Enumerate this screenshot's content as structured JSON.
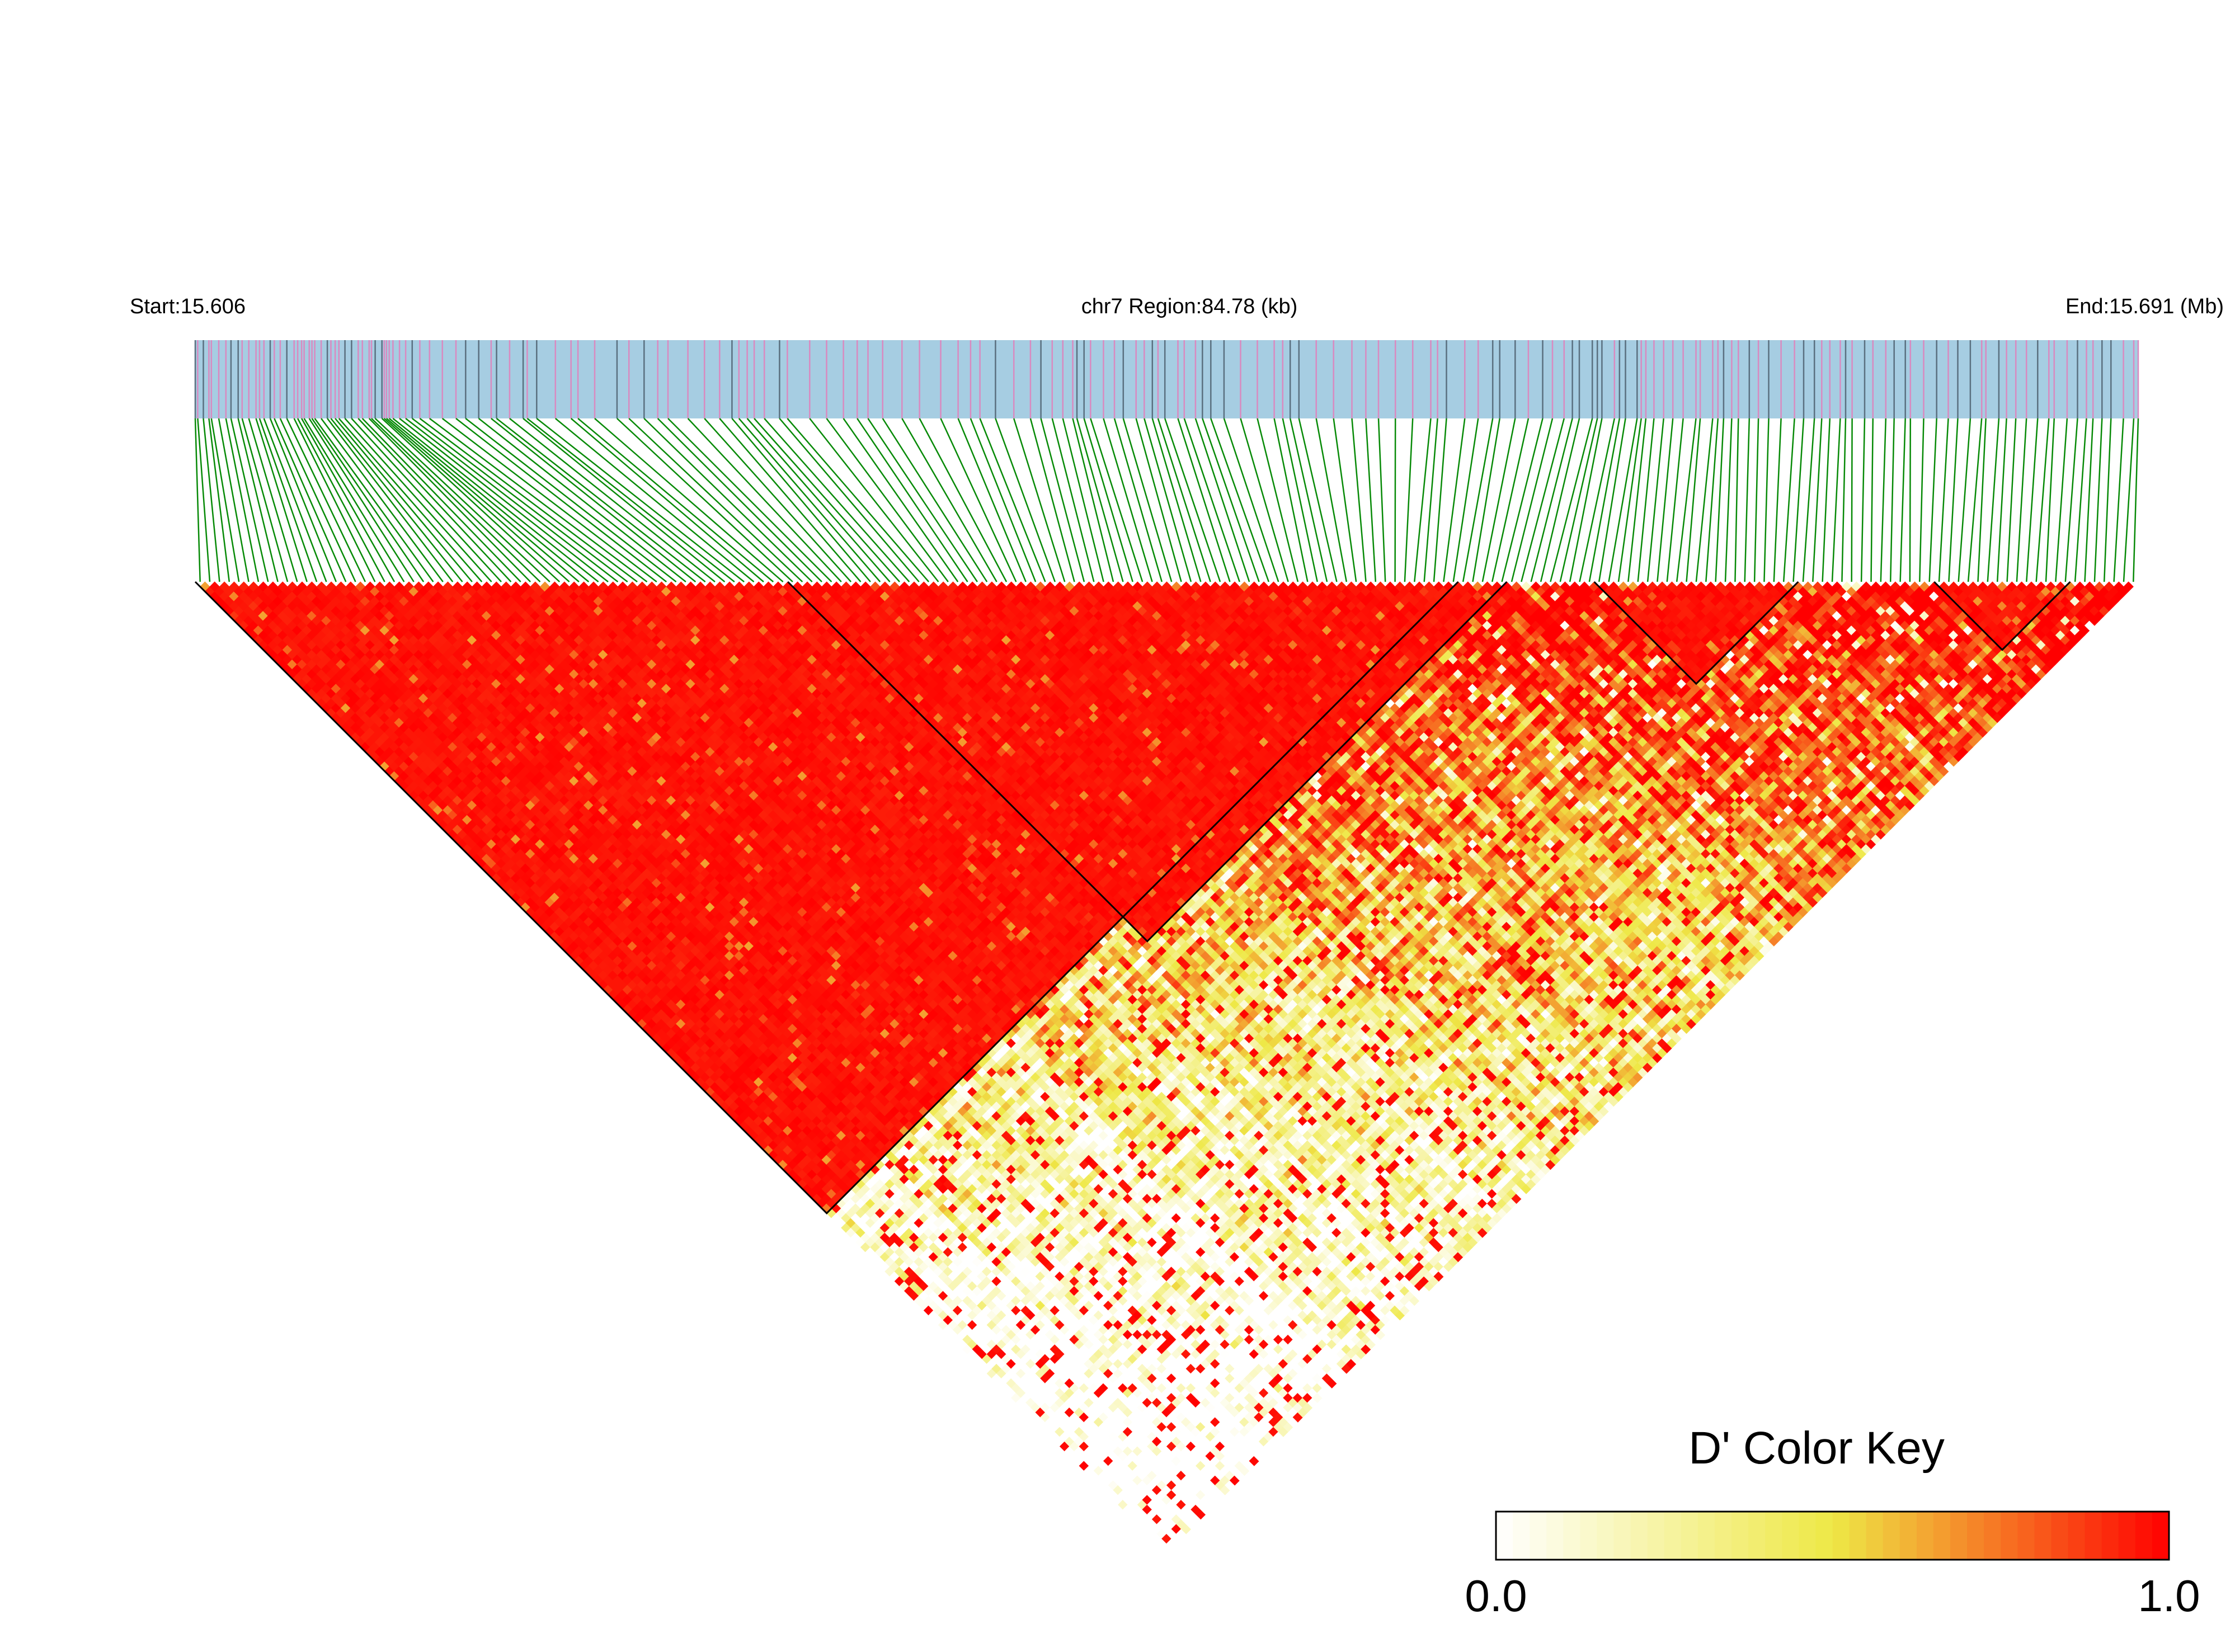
{
  "header": {
    "start_label": "Start:15.606",
    "region_label": "chr7 Region:84.78 (kb)",
    "end_label": "End:15.691 (Mb)"
  },
  "colors": {
    "track_background": "#a6cde2",
    "snp_pink": "#d98ac0",
    "snp_gray": "#5a7080",
    "connector_green": "#078a07",
    "ld_low": "#ffffff",
    "ld_mid": "#eee846",
    "ld_high": "#ff0000",
    "block_outline": "#000000"
  },
  "color_key": {
    "title": "D' Color Key",
    "min_label": "0.0",
    "max_label": "1.0"
  },
  "chart_data": {
    "type": "heatmap",
    "subtype": "linkage-disequilibrium-triangle",
    "measure": "D'",
    "chromosome": "chr7",
    "start_mb": 15.606,
    "end_mb": 15.691,
    "region_kb": 84.78,
    "value_range": [
      0.0,
      1.0
    ],
    "colorscale": [
      "#ffffff",
      "#eee846",
      "#ff0000"
    ],
    "snp_count": 200,
    "haplotype_blocks": [
      {
        "from_snp": 1,
        "to_snp": 130
      },
      {
        "from_snp": 62,
        "to_snp": 135
      },
      {
        "from_snp": 145,
        "to_snp": 165
      },
      {
        "from_snp": 180,
        "to_snp": 193
      }
    ],
    "legend_position": "bottom-right"
  }
}
